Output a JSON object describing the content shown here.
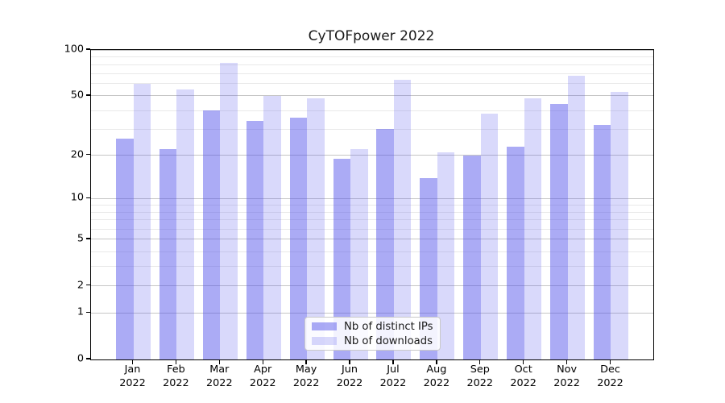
{
  "title": "CyTOFpower 2022",
  "legend": {
    "items": [
      {
        "label": "Nb of distinct IPs"
      },
      {
        "label": "Nb of downloads"
      }
    ]
  },
  "chart_data": {
    "type": "bar",
    "title": "CyTOFpower 2022",
    "categories": [
      "Jan",
      "Feb",
      "Mar",
      "Apr",
      "May",
      "Jun",
      "Jul",
      "Aug",
      "Sep",
      "Oct",
      "Nov",
      "Dec"
    ],
    "category_year": "2022",
    "series": [
      {
        "name": "Nb of distinct IPs",
        "color": "rgba(80,80,235,0.48)",
        "values": [
          26,
          22,
          40,
          34,
          36,
          19,
          30,
          14,
          20,
          23,
          44,
          32
        ]
      },
      {
        "name": "Nb of downloads",
        "color": "rgba(80,80,235,0.22)",
        "values": [
          60,
          55,
          82,
          50,
          48,
          22,
          64,
          21,
          38,
          48,
          68,
          53
        ]
      }
    ],
    "yscale": "log1p",
    "ylim": [
      0,
      100
    ],
    "yticks": [
      100,
      50,
      20,
      10,
      5,
      2,
      1,
      0
    ],
    "yticks_minor": [
      3,
      4,
      6,
      7,
      8,
      9,
      30,
      40,
      60,
      70,
      80,
      90
    ],
    "xlabel": "",
    "ylabel": "",
    "grid": true,
    "legend_position": "lower-center-inside"
  }
}
